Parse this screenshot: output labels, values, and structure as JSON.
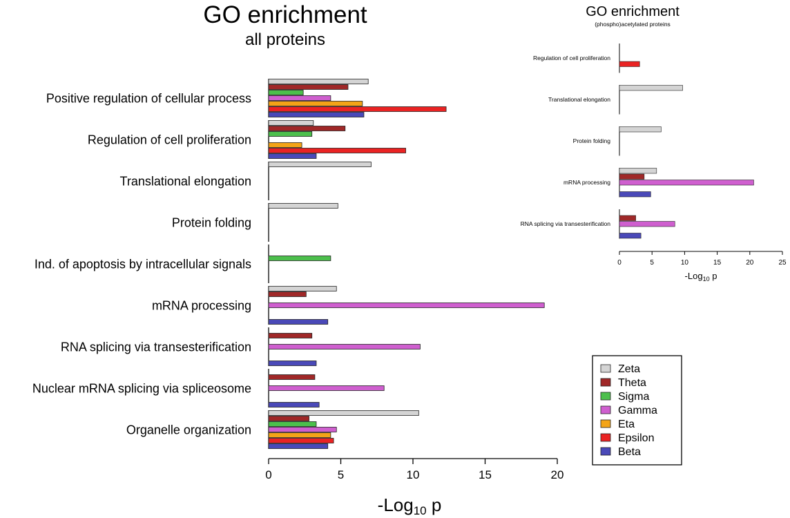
{
  "colors": {
    "Zeta": "#d4d4d4",
    "Theta": "#a02828",
    "Sigma": "#4cbf4c",
    "Gamma": "#cf5fcf",
    "Eta": "#f3a417",
    "Epsilon": "#ea2323",
    "Beta": "#4a49b8"
  },
  "legend": {
    "placement": "bottom-right",
    "entries": [
      "Zeta",
      "Theta",
      "Sigma",
      "Gamma",
      "Eta",
      "Epsilon",
      "Beta"
    ]
  },
  "chart_data": [
    {
      "type": "bar",
      "orientation": "horizontal",
      "title": "GO enrichment",
      "subtitle": "all proteins",
      "xlabel_main": "-Log",
      "xlabel_sub": "10",
      "xlabel_tail": " p",
      "xlim": [
        0,
        20
      ],
      "xticks": [
        "0",
        "5",
        "10",
        "15",
        "20"
      ],
      "grid": false,
      "series_order": [
        "Zeta",
        "Theta",
        "Sigma",
        "Gamma",
        "Eta",
        "Epsilon",
        "Beta"
      ],
      "categories": [
        {
          "label": "Positive regulation of cellular process",
          "values": {
            "Zeta": 6.9,
            "Theta": 5.5,
            "Sigma": 2.4,
            "Gamma": 4.3,
            "Eta": 6.5,
            "Epsilon": 12.3,
            "Beta": 6.6
          }
        },
        {
          "label": "Regulation of cell proliferation",
          "values": {
            "Zeta": 3.1,
            "Theta": 5.3,
            "Sigma": 3.0,
            "Eta": 2.3,
            "Epsilon": 9.5,
            "Beta": 3.3
          }
        },
        {
          "label": "Translational elongation",
          "values": {
            "Zeta": 7.1
          }
        },
        {
          "label": "Protein folding",
          "values": {
            "Zeta": 4.8
          }
        },
        {
          "label": "Ind. of apoptosis by intracellular signals",
          "values": {
            "Sigma": 4.3
          }
        },
        {
          "label": "mRNA processing",
          "values": {
            "Zeta": 4.7,
            "Theta": 2.6,
            "Gamma": 19.1,
            "Beta": 4.1
          }
        },
        {
          "label": "RNA splicing via transesterification",
          "values": {
            "Theta": 3.0,
            "Gamma": 10.5,
            "Beta": 3.3
          }
        },
        {
          "label": "Nuclear mRNA splicing via spliceosome",
          "values": {
            "Theta": 3.2,
            "Gamma": 8.0,
            "Beta": 3.5
          }
        },
        {
          "label": "Organelle organization",
          "values": {
            "Zeta": 10.4,
            "Theta": 2.8,
            "Sigma": 3.3,
            "Gamma": 4.7,
            "Eta": 4.3,
            "Epsilon": 4.5,
            "Beta": 4.1
          }
        }
      ]
    },
    {
      "type": "bar",
      "orientation": "horizontal",
      "title": "GO enrichment",
      "subtitle": "(phospho)acetylated  proteins",
      "xlabel_main": "-Log",
      "xlabel_sub": "10",
      "xlabel_tail": " p",
      "xlim": [
        0,
        25
      ],
      "xticks": [
        "0",
        "5",
        "10",
        "15",
        "20",
        "25"
      ],
      "grid": false,
      "series_order": [
        "Zeta",
        "Theta",
        "Gamma",
        "Epsilon",
        "Beta"
      ],
      "categories": [
        {
          "label": "Regulation of cell proliferation",
          "values": {
            "Epsilon": 3.1
          }
        },
        {
          "label": "Translational elongation",
          "values": {
            "Zeta": 9.7
          }
        },
        {
          "label": "Protein folding",
          "values": {
            "Zeta": 6.4
          }
        },
        {
          "label": "mRNA processing",
          "values": {
            "Zeta": 5.7,
            "Theta": 3.8,
            "Gamma": 20.6,
            "Beta": 4.8
          }
        },
        {
          "label": "RNA splicing via transesterification",
          "values": {
            "Theta": 2.5,
            "Gamma": 8.5,
            "Beta": 3.3
          }
        }
      ]
    }
  ]
}
